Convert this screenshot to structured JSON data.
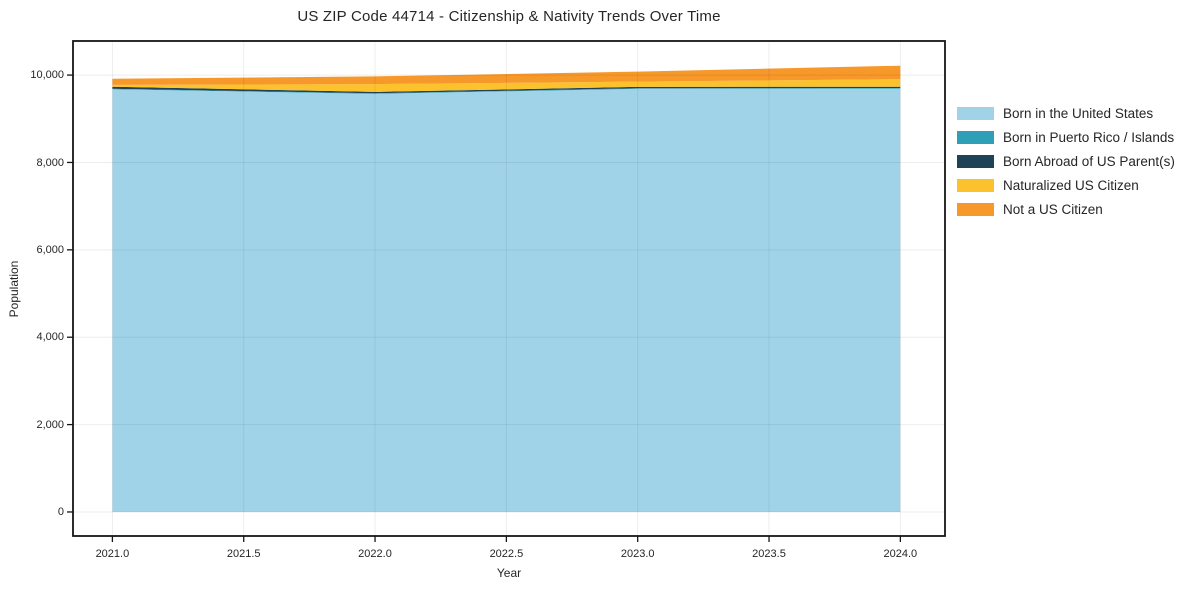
{
  "title": "US ZIP Code 44714 - Citizenship & Nativity Trends Over Time",
  "chart_data": {
    "type": "area",
    "stacked": true,
    "title": "US ZIP Code 44714 - Citizenship & Nativity Trends Over Time",
    "xlabel": "Year",
    "ylabel": "Population",
    "x": [
      2021,
      2022,
      2023,
      2024
    ],
    "series": [
      {
        "name": "Born in the United States",
        "color": "#a1d3e8",
        "values": [
          9675,
          9570,
          9685,
          9690
        ]
      },
      {
        "name": "Born in Puerto Rico / Islands",
        "color": "#2f9fb8",
        "values": [
          12,
          14,
          15,
          15
        ]
      },
      {
        "name": "Born Abroad of US Parent(s)",
        "color": "#1e4356",
        "values": [
          48,
          30,
          30,
          30
        ]
      },
      {
        "name": "Naturalized US Citizen",
        "color": "#fcc22d",
        "values": [
          40,
          180,
          120,
          170
        ]
      },
      {
        "name": "Not a US Citizen",
        "color": "#f7982a",
        "values": [
          140,
          175,
          230,
          310
        ]
      }
    ],
    "stack_totals": [
      9915,
      9969,
      10080,
      10215
    ],
    "x_ticks": [
      "2021.0",
      "2021.5",
      "2022.0",
      "2022.5",
      "2023.0",
      "2023.5",
      "2024.0"
    ],
    "x_tick_values": [
      2021,
      2021.5,
      2022,
      2022.5,
      2023,
      2023.5,
      2024
    ],
    "y_ticks": [
      "0",
      "2,000",
      "4,000",
      "6,000",
      "8,000",
      "10,000"
    ],
    "y_tick_values": [
      0,
      2000,
      4000,
      6000,
      8000,
      10000
    ],
    "xlim": [
      2020.85,
      2024.17
    ],
    "ylim": [
      -550,
      10780
    ],
    "grid": true,
    "legend_position": "right",
    "frame_color": "#161616",
    "background_color": "#ffffff"
  }
}
